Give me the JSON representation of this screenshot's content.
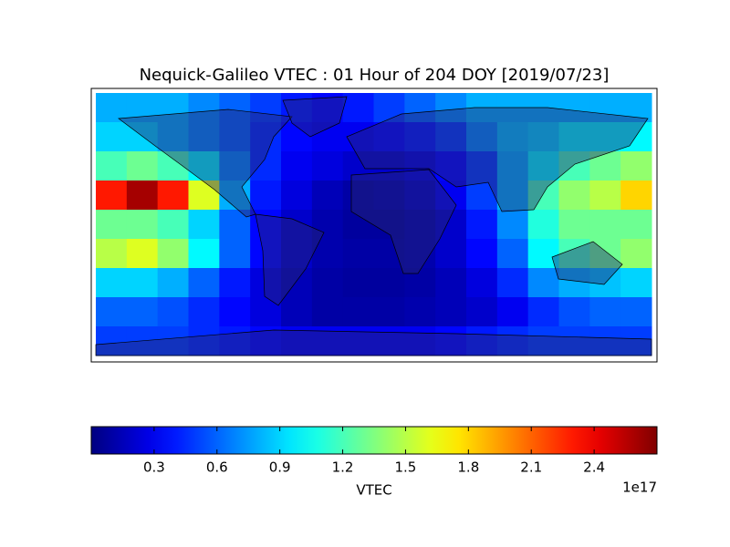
{
  "chart_data": {
    "type": "heatmap",
    "title": "Nequick-Galileo VTEC : 01 Hour of 204 DOY [2019/07/23]",
    "colormap": "jet",
    "lon": [
      -170,
      -150,
      -130,
      -110,
      -90,
      -70,
      -50,
      -30,
      -10,
      10,
      30,
      50,
      70,
      90,
      110,
      130,
      150,
      170
    ],
    "lat": [
      80,
      60,
      40,
      20,
      0,
      -20,
      -40,
      -60,
      -80
    ],
    "values": [
      [
        0.8,
        0.8,
        0.8,
        0.7,
        0.6,
        0.5,
        0.4,
        0.35,
        0.4,
        0.5,
        0.6,
        0.7,
        0.8,
        0.8,
        0.8,
        0.8,
        0.8,
        0.8
      ],
      [
        0.9,
        0.9,
        0.8,
        0.7,
        0.6,
        0.45,
        0.35,
        0.3,
        0.3,
        0.35,
        0.4,
        0.5,
        0.7,
        0.85,
        0.9,
        1.0,
        1.0,
        1.0
      ],
      [
        1.2,
        1.3,
        1.2,
        1.0,
        0.7,
        0.45,
        0.3,
        0.25,
        0.2,
        0.2,
        0.25,
        0.35,
        0.5,
        0.8,
        1.0,
        1.2,
        1.3,
        1.4
      ],
      [
        2.3,
        2.6,
        2.3,
        1.6,
        0.8,
        0.4,
        0.25,
        0.15,
        0.1,
        0.12,
        0.18,
        0.3,
        0.5,
        0.8,
        1.2,
        1.4,
        1.5,
        1.8
      ],
      [
        1.3,
        1.3,
        1.2,
        0.9,
        0.6,
        0.35,
        0.2,
        0.12,
        0.08,
        0.08,
        0.12,
        0.2,
        0.4,
        0.7,
        1.1,
        1.3,
        1.3,
        1.3
      ],
      [
        1.5,
        1.6,
        1.4,
        1.0,
        0.6,
        0.35,
        0.2,
        0.12,
        0.1,
        0.1,
        0.12,
        0.2,
        0.35,
        0.6,
        1.0,
        1.2,
        1.3,
        1.4
      ],
      [
        0.9,
        0.9,
        0.8,
        0.6,
        0.4,
        0.25,
        0.15,
        0.1,
        0.08,
        0.08,
        0.1,
        0.15,
        0.25,
        0.45,
        0.7,
        0.8,
        0.85,
        0.9
      ],
      [
        0.6,
        0.6,
        0.55,
        0.45,
        0.35,
        0.25,
        0.15,
        0.1,
        0.1,
        0.1,
        0.12,
        0.15,
        0.2,
        0.3,
        0.45,
        0.55,
        0.6,
        0.6
      ],
      [
        0.5,
        0.5,
        0.5,
        0.45,
        0.4,
        0.35,
        0.3,
        0.3,
        0.3,
        0.3,
        0.3,
        0.35,
        0.4,
        0.45,
        0.5,
        0.5,
        0.5,
        0.5
      ]
    ],
    "clim": [
      0,
      2.7
    ],
    "colorbar_ticks": [
      0.3,
      0.6,
      0.9,
      1.2,
      1.5,
      1.8,
      2.1,
      2.4
    ],
    "colorbar_label": "VTEC",
    "colorbar_offset": "1e17"
  }
}
